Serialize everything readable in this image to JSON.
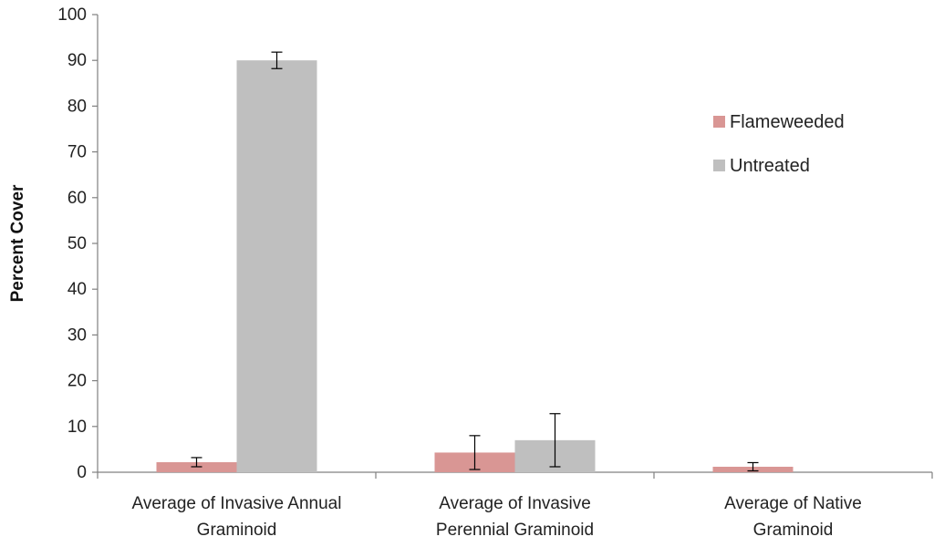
{
  "chart_data": {
    "type": "bar",
    "title": "",
    "xlabel": "",
    "ylabel": "Percent Cover",
    "ylim": [
      0,
      100
    ],
    "yticks": [
      0,
      10,
      20,
      30,
      40,
      50,
      60,
      70,
      80,
      90,
      100
    ],
    "categories": [
      [
        "Average of Invasive Annual",
        "Graminoid"
      ],
      [
        "Average of Invasive",
        "Perennial Graminoid"
      ],
      [
        "Average of Native",
        "Graminoid"
      ]
    ],
    "series": [
      {
        "name": "Flameweeded",
        "color": "#d99694",
        "values": [
          2.2,
          4.3,
          1.2
        ],
        "errors": [
          1.0,
          3.7,
          0.9
        ]
      },
      {
        "name": "Untreated",
        "color": "#bfbfbf",
        "values": [
          90,
          7,
          0
        ],
        "errors": [
          1.8,
          5.8,
          0
        ]
      }
    ],
    "grid": false,
    "legend": "right"
  }
}
